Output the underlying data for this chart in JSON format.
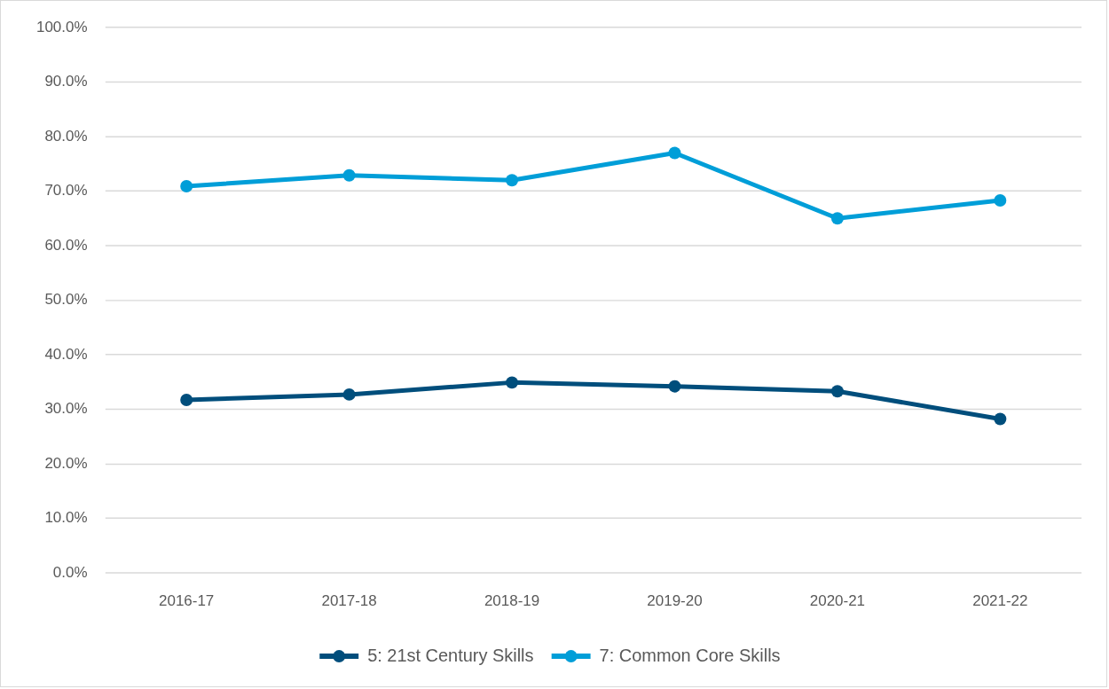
{
  "chart_data": {
    "type": "line",
    "categories": [
      "2016-17",
      "2017-18",
      "2018-19",
      "2019-20",
      "2020-21",
      "2021-22"
    ],
    "series": [
      {
        "name": "5: 21st Century Skills",
        "color": "#004e7c",
        "values": [
          31.7,
          32.7,
          34.9,
          34.2,
          33.3,
          28.2
        ]
      },
      {
        "name": "7: Common Core Skills",
        "color": "#009ed8",
        "values": [
          70.9,
          72.9,
          72.0,
          77.0,
          65.0,
          68.3
        ]
      }
    ],
    "ylim": [
      0,
      100
    ],
    "yticks": [
      {
        "value": 0,
        "label": "0.0%"
      },
      {
        "value": 10,
        "label": "10.0%"
      },
      {
        "value": 20,
        "label": "20.0%"
      },
      {
        "value": 30,
        "label": "30.0%"
      },
      {
        "value": 40,
        "label": "40.0%"
      },
      {
        "value": 50,
        "label": "50.0%"
      },
      {
        "value": 60,
        "label": "60.0%"
      },
      {
        "value": 70,
        "label": "70.0%"
      },
      {
        "value": 80,
        "label": "80.0%"
      },
      {
        "value": 90,
        "label": "90.0%"
      },
      {
        "value": 100,
        "label": "100.0%"
      }
    ],
    "grid": "y",
    "legend": "bottom",
    "marker": "circle",
    "line_style": "solid"
  }
}
